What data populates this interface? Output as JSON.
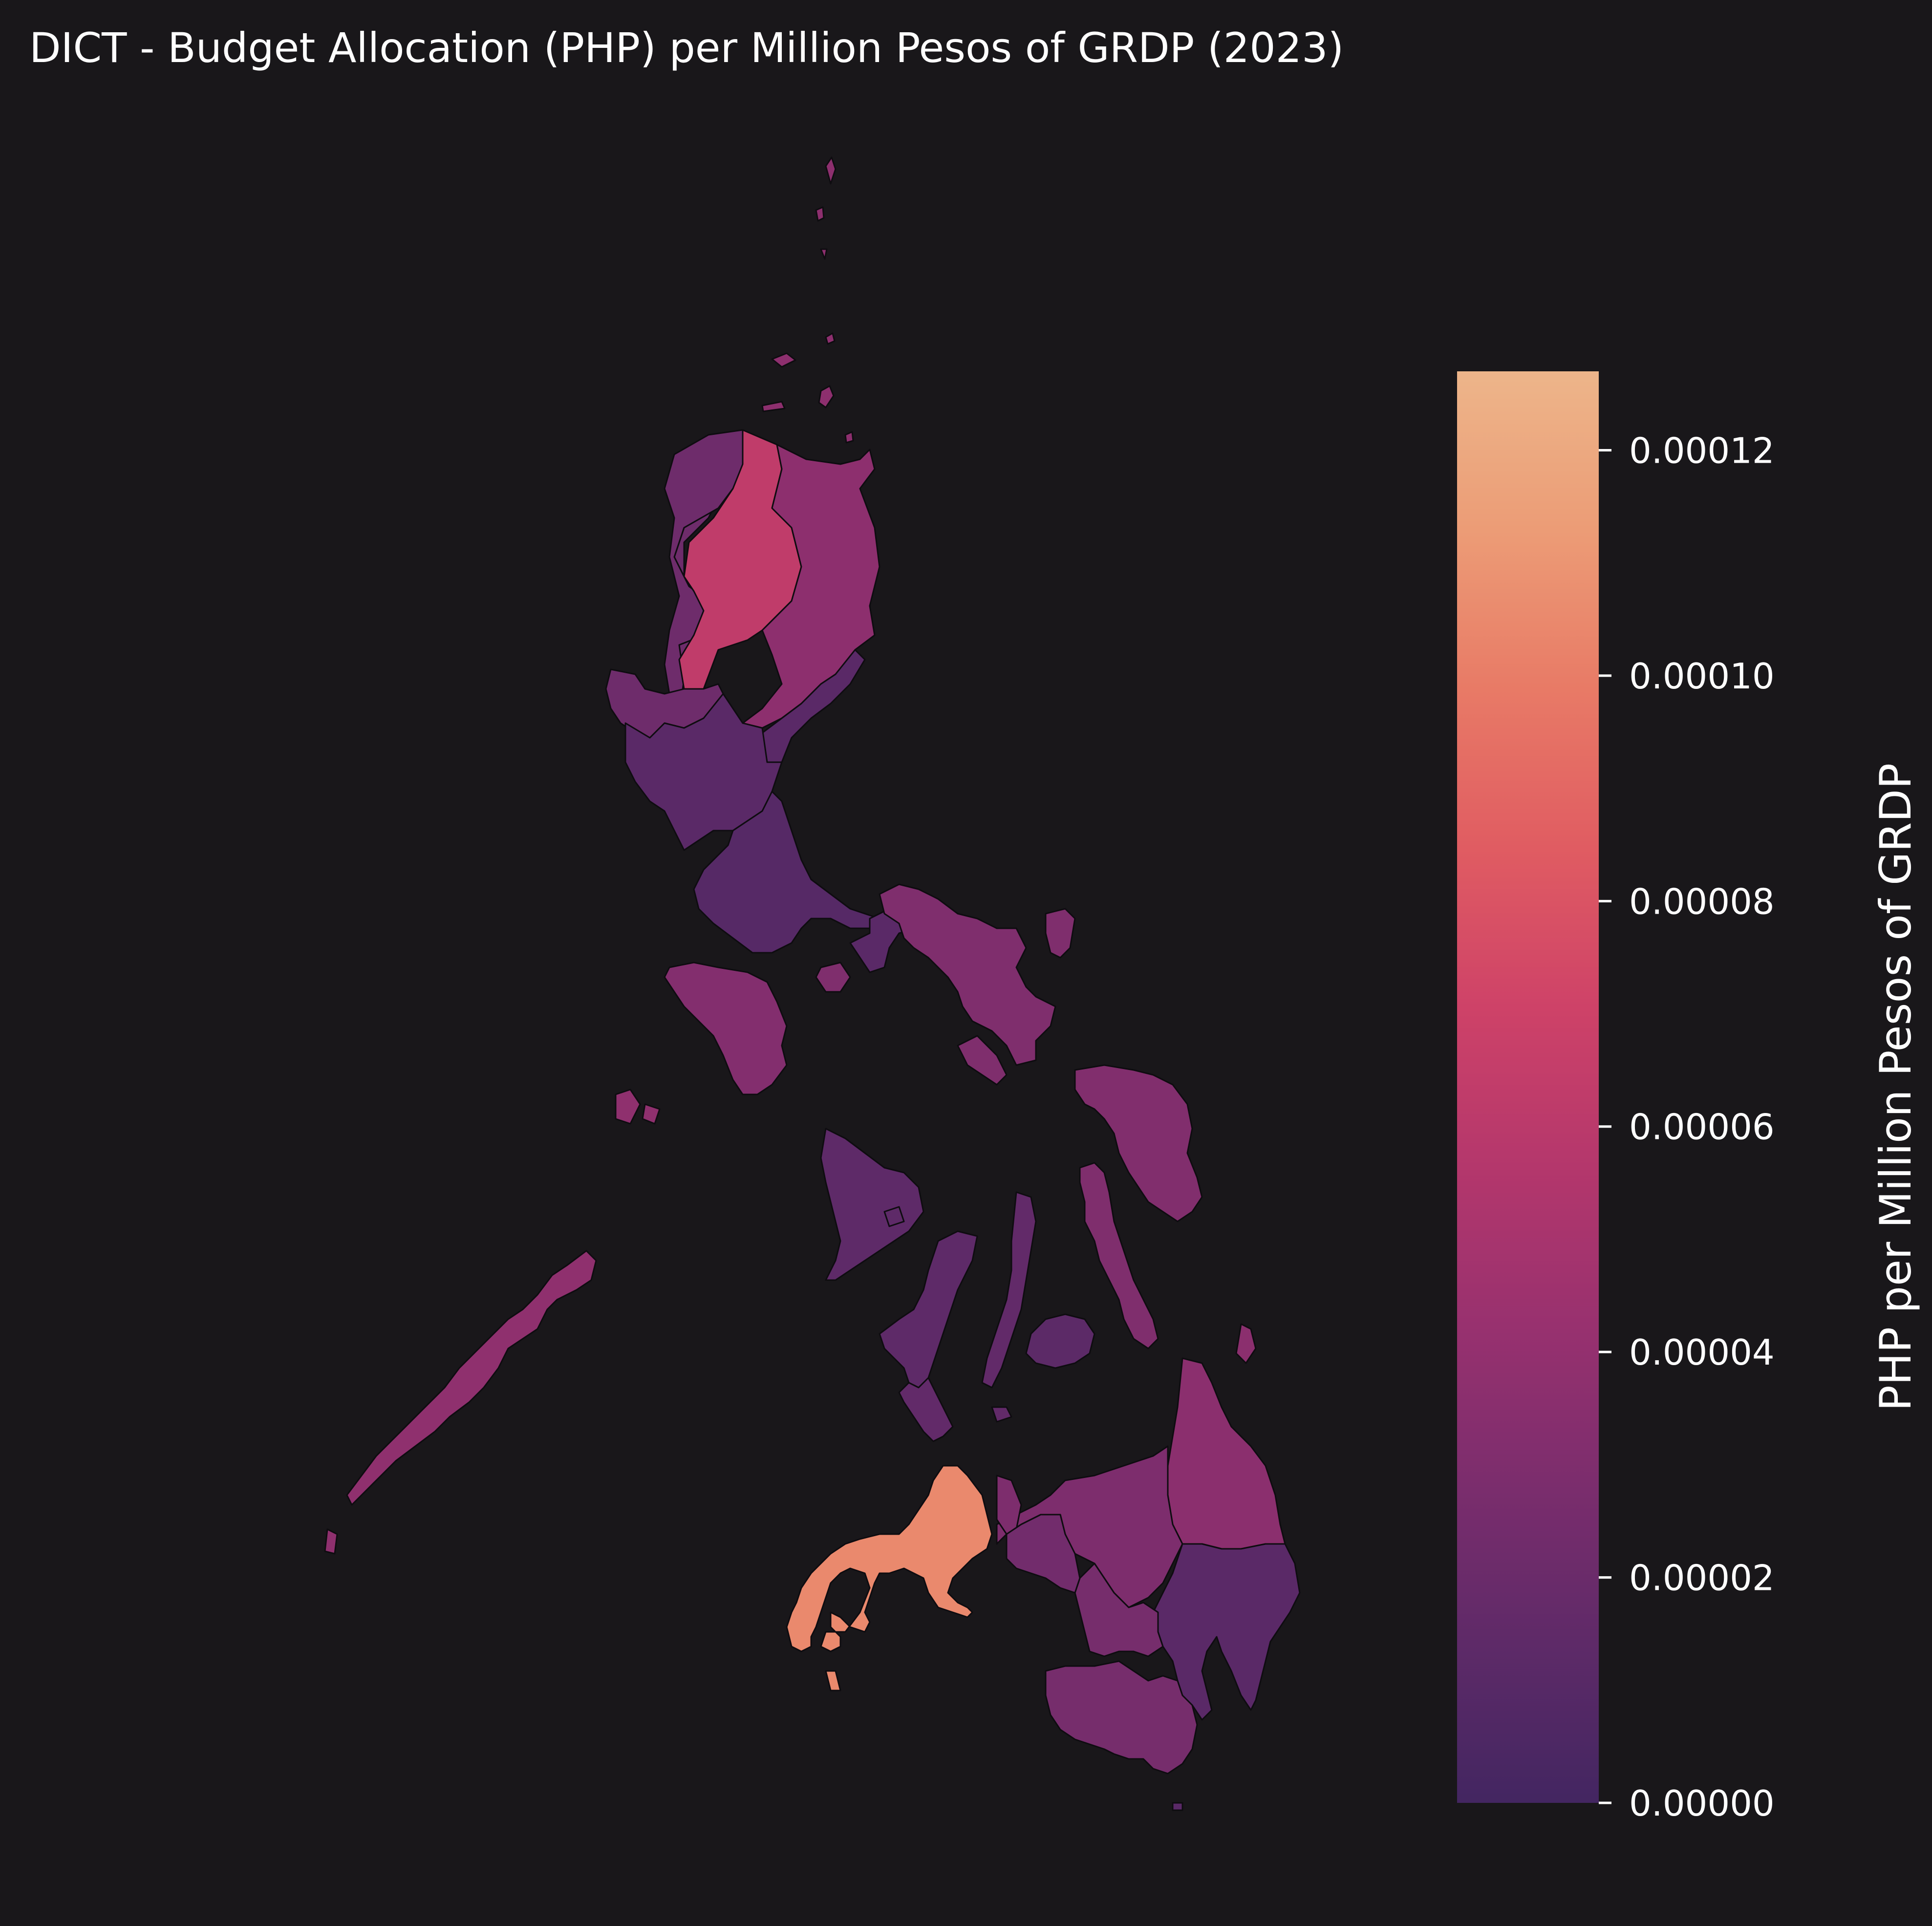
{
  "title": "DICT - Budget Allocation (PHP) per Million Pesos of GRDP (2023)",
  "colorbar": {
    "label": "PHP per Million Pesos of GRDP",
    "min": 0,
    "max": 0.000127,
    "ticks": [
      "0.00000",
      "0.00002",
      "0.00004",
      "0.00006",
      "0.00008",
      "0.00010",
      "0.00012"
    ],
    "tick_values": [
      0,
      2e-05,
      4e-05,
      6e-05,
      8e-05,
      0.0001,
      0.00012
    ],
    "colormap": [
      "#432661",
      "#5e2a68",
      "#7b2d6d",
      "#98316f",
      "#b4376c",
      "#ce4268",
      "#e05c62",
      "#e87a66",
      "#ec9c76",
      "#edb58a"
    ]
  },
  "regions": [
    {
      "id": "ilocos",
      "value": 2.2e-05
    },
    {
      "id": "car",
      "value": 6.3e-05
    },
    {
      "id": "cagayan-valley",
      "value": 3.7e-05
    },
    {
      "id": "pangasinan",
      "value": 2.2e-05
    },
    {
      "id": "central-luzon",
      "value": 1.2e-05
    },
    {
      "id": "calabarzon",
      "value": 1e-05
    },
    {
      "id": "aurora-quezon-coast",
      "value": 1.2e-05
    },
    {
      "id": "bicol",
      "value": 3e-05
    },
    {
      "id": "mimaropa-mindoro",
      "value": 3.2e-05
    },
    {
      "id": "marinduque",
      "value": 3e-05
    },
    {
      "id": "palawan",
      "value": 3.8e-05
    },
    {
      "id": "western-visayas",
      "value": 1.4e-05
    },
    {
      "id": "central-visayas",
      "value": 1.6e-05
    },
    {
      "id": "bohol",
      "value": 1.3e-05
    },
    {
      "id": "eastern-visayas",
      "value": 3.1e-05
    },
    {
      "id": "leyte",
      "value": 3e-05
    },
    {
      "id": "masbate",
      "value": 3e-05
    },
    {
      "id": "zamboanga-peninsula",
      "value": 0.000105
    },
    {
      "id": "northern-mindanao",
      "value": 2.9e-05
    },
    {
      "id": "caraga",
      "value": 3.6e-05
    },
    {
      "id": "davao",
      "value": 1.2e-05
    },
    {
      "id": "soccsksargen",
      "value": 2.6e-05
    },
    {
      "id": "barmm",
      "value": 2.4e-05
    }
  ]
}
